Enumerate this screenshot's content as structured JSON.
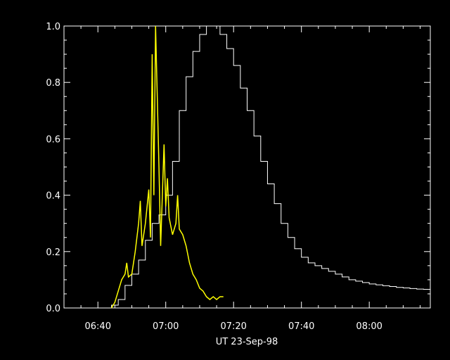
{
  "chart_data": {
    "type": "line",
    "title": "",
    "xlabel": "UT 23-Sep-98",
    "ylabel": "",
    "xlim": [
      "06:30",
      "08:18"
    ],
    "ylim": [
      0,
      1.0
    ],
    "grid": false,
    "background": "#000000",
    "x_ticks": [
      {
        "t": "06:40",
        "label": "06:40"
      },
      {
        "t": "07:00",
        "label": "07:00"
      },
      {
        "t": "07:20",
        "label": "07:20"
      },
      {
        "t": "07:40",
        "label": "07:40"
      },
      {
        "t": "08:00",
        "label": "08:00"
      }
    ],
    "y_ticks": [
      {
        "v": 0.0,
        "label": "0.0"
      },
      {
        "v": 0.2,
        "label": "0.2"
      },
      {
        "v": 0.4,
        "label": "0.4"
      },
      {
        "v": 0.6,
        "label": "0.6"
      },
      {
        "v": 0.8,
        "label": "0.8"
      },
      {
        "v": 1.0,
        "label": "1.0"
      }
    ],
    "series": [
      {
        "color": "#ffffff",
        "style": "step",
        "x": [
          "06:30",
          "06:40",
          "06:44",
          "06:46",
          "06:48",
          "06:50",
          "06:52",
          "06:54",
          "06:56",
          "06:58",
          "07:00",
          "07:02",
          "07:04",
          "07:06",
          "07:08",
          "07:10",
          "07:12",
          "07:14",
          "07:16",
          "07:18",
          "07:20",
          "07:22",
          "07:24",
          "07:26",
          "07:28",
          "07:30",
          "07:32",
          "07:34",
          "07:36",
          "07:38",
          "07:40",
          "07:42",
          "07:44",
          "07:46",
          "07:48",
          "07:50",
          "07:52",
          "07:54",
          "07:56",
          "07:58",
          "08:00",
          "08:02",
          "08:04",
          "08:06",
          "08:08",
          "08:10",
          "08:12",
          "08:14",
          "08:16",
          "08:18"
        ],
        "y": [
          0.0,
          0.0,
          0.01,
          0.03,
          0.08,
          0.12,
          0.17,
          0.24,
          0.3,
          0.33,
          0.4,
          0.52,
          0.7,
          0.82,
          0.91,
          0.97,
          1.0,
          1.0,
          0.97,
          0.92,
          0.86,
          0.78,
          0.7,
          0.61,
          0.52,
          0.44,
          0.37,
          0.3,
          0.25,
          0.21,
          0.18,
          0.16,
          0.15,
          0.14,
          0.13,
          0.12,
          0.11,
          0.1,
          0.095,
          0.09,
          0.085,
          0.082,
          0.079,
          0.076,
          0.073,
          0.071,
          0.069,
          0.067,
          0.066,
          0.064
        ]
      },
      {
        "color": "#ffff00",
        "style": "line",
        "x": [
          "06:44",
          "06:45",
          "06:46",
          "06:47",
          "06:48",
          "06:48.5",
          "06:49",
          "06:50",
          "06:51",
          "06:52",
          "06:52.5",
          "06:53",
          "06:54",
          "06:55",
          "06:55.5",
          "06:56",
          "06:56.5",
          "06:57",
          "06:58",
          "06:58.5",
          "06:59",
          "06:59.5",
          "07:00",
          "07:00.5",
          "07:01",
          "07:02",
          "07:03",
          "07:03.5",
          "07:04",
          "07:05",
          "07:06",
          "07:07",
          "07:08",
          "07:09",
          "07:10",
          "07:11",
          "07:12",
          "07:13",
          "07:14",
          "07:15",
          "07:16",
          "07:17"
        ],
        "y": [
          0.0,
          0.02,
          0.06,
          0.1,
          0.12,
          0.16,
          0.11,
          0.12,
          0.2,
          0.3,
          0.38,
          0.22,
          0.3,
          0.42,
          0.25,
          0.9,
          0.4,
          1.0,
          0.5,
          0.22,
          0.4,
          0.58,
          0.36,
          0.46,
          0.32,
          0.26,
          0.3,
          0.4,
          0.28,
          0.26,
          0.22,
          0.16,
          0.12,
          0.1,
          0.07,
          0.06,
          0.04,
          0.03,
          0.04,
          0.03,
          0.04,
          0.04
        ]
      }
    ]
  }
}
